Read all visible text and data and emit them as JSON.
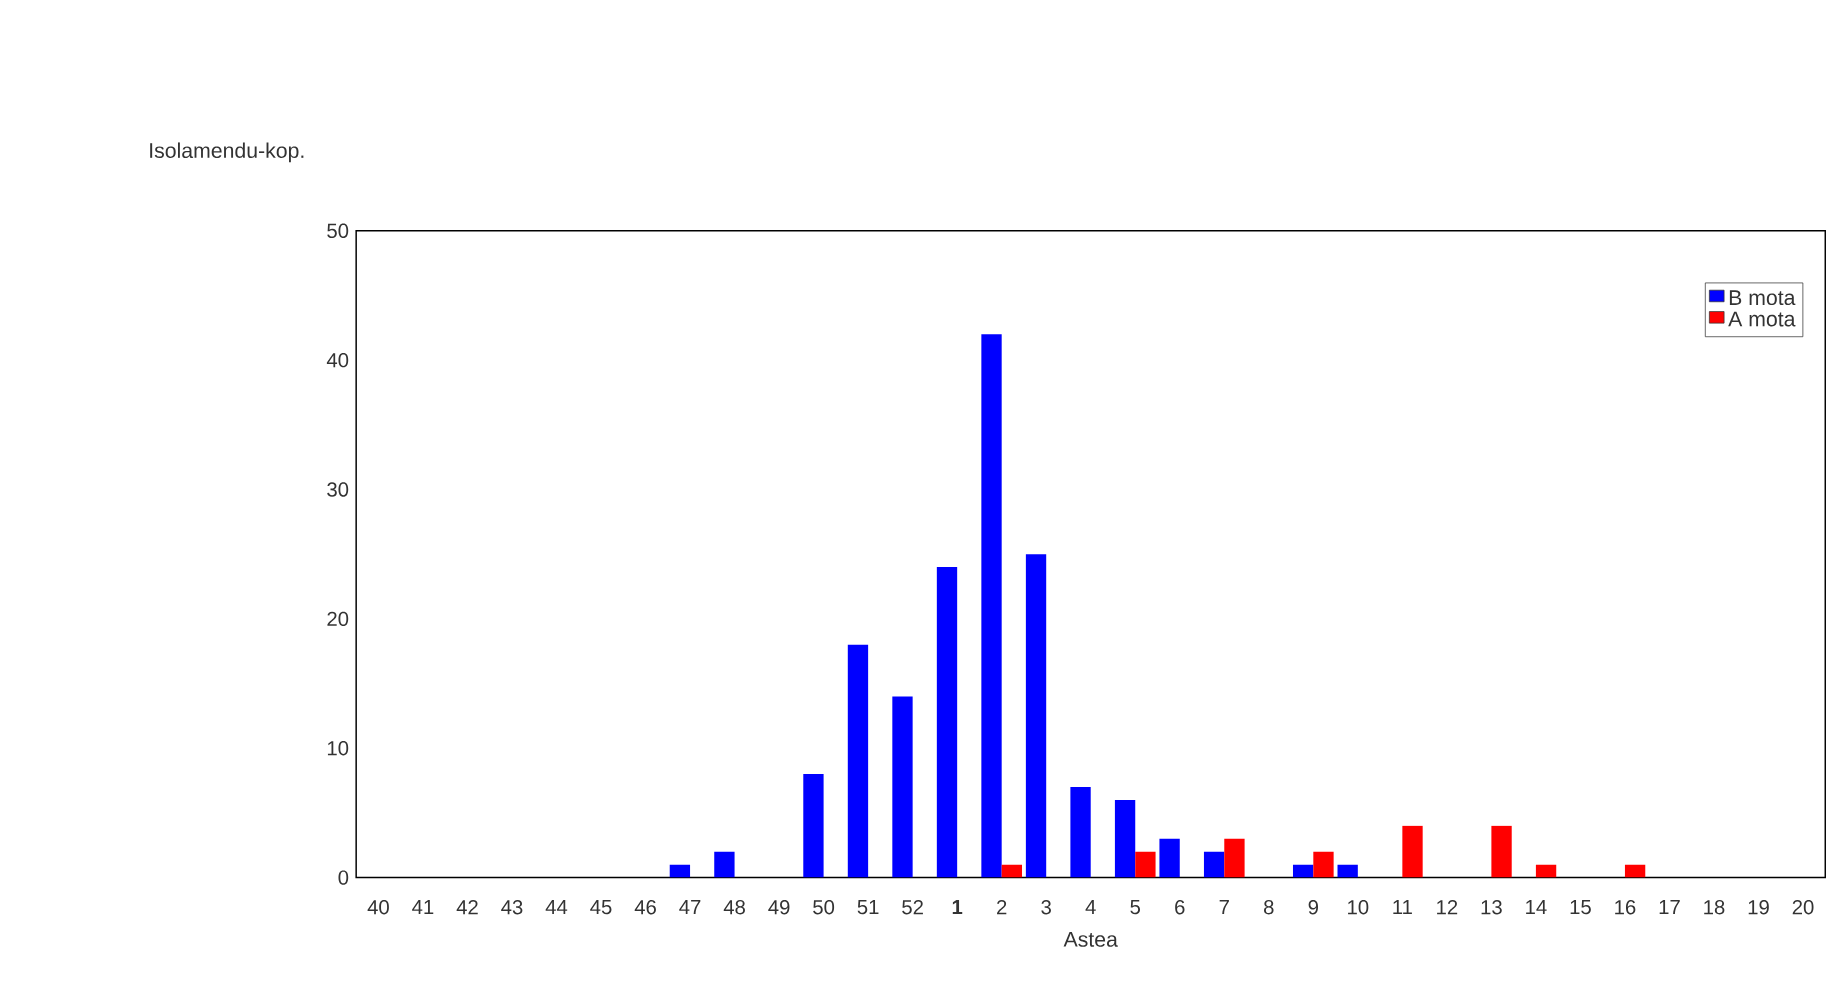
{
  "chart_data": {
    "type": "bar",
    "xlabel": "Astea",
    "ylabel": "Isolamendu-kop.",
    "categories": [
      "40",
      "41",
      "42",
      "43",
      "44",
      "45",
      "46",
      "47",
      "48",
      "49",
      "50",
      "51",
      "52",
      "**1**",
      "2",
      "3",
      "4",
      "5",
      "6",
      "7",
      "8",
      "9",
      "10",
      "11",
      "12",
      "13",
      "14",
      "15",
      "16",
      "17",
      "18",
      "19",
      "20"
    ],
    "series": [
      {
        "name": "B mota",
        "color": "#0000ff",
        "values": [
          0,
          0,
          0,
          0,
          0,
          0,
          0,
          1,
          2,
          0,
          8,
          18,
          14,
          24,
          42,
          25,
          7,
          6,
          3,
          2,
          0,
          1,
          1,
          0,
          0,
          0,
          0,
          0,
          0,
          0,
          0,
          0,
          0
        ]
      },
      {
        "name": "A mota",
        "color": "#ff0000",
        "values": [
          0,
          0,
          0,
          0,
          0,
          0,
          0,
          0,
          0,
          0,
          0,
          0,
          0,
          0,
          1,
          0,
          0,
          2,
          0,
          3,
          0,
          2,
          0,
          4,
          0,
          4,
          1,
          0,
          1,
          0,
          0,
          0,
          0
        ]
      }
    ],
    "ylim": [
      0,
      50
    ],
    "yticks": [
      0,
      10,
      20,
      30,
      40,
      50
    ],
    "grid": false,
    "legend": "top right"
  }
}
